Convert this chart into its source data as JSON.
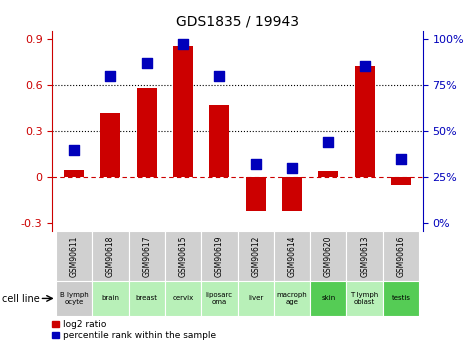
{
  "title": "GDS1835 / 19943",
  "gsm_labels": [
    "GSM90611",
    "GSM90618",
    "GSM90617",
    "GSM90615",
    "GSM90619",
    "GSM90612",
    "GSM90614",
    "GSM90620",
    "GSM90613",
    "GSM90616"
  ],
  "cell_labels": [
    "B lymph\nocyte",
    "brain",
    "breast",
    "cervix",
    "liposarc\noma",
    "liver",
    "macroph\nage",
    "skin",
    "T lymph\noblast",
    "testis"
  ],
  "cell_bg_colors": [
    "#cccccc",
    "#b8f0b8",
    "#b8f0b8",
    "#b8f0b8",
    "#b8f0b8",
    "#b8f0b8",
    "#b8f0b8",
    "#55cc55",
    "#b8f0b8",
    "#55cc55"
  ],
  "log2_ratio": [
    0.05,
    0.42,
    0.58,
    0.85,
    0.47,
    -0.22,
    -0.22,
    0.04,
    0.72,
    -0.05
  ],
  "percentile_rank_pct": [
    40,
    80,
    87,
    97,
    80,
    32,
    30,
    44,
    85,
    35
  ],
  "ylim": [
    -0.35,
    0.95
  ],
  "yticks_left": [
    -0.3,
    0.0,
    0.3,
    0.6,
    0.9
  ],
  "ytick_labels_left": [
    "-0.3",
    "0",
    "0.3",
    "0.6",
    "0.9"
  ],
  "ytick_labels_right": [
    "0%",
    "25%",
    "50%",
    "75%",
    "100%"
  ],
  "pct_min": 0,
  "pct_max": 100,
  "bar_color": "#cc0000",
  "dot_color": "#0000bb",
  "hline_color": "#cc0000",
  "dot_size": 55,
  "bar_width": 0.55
}
